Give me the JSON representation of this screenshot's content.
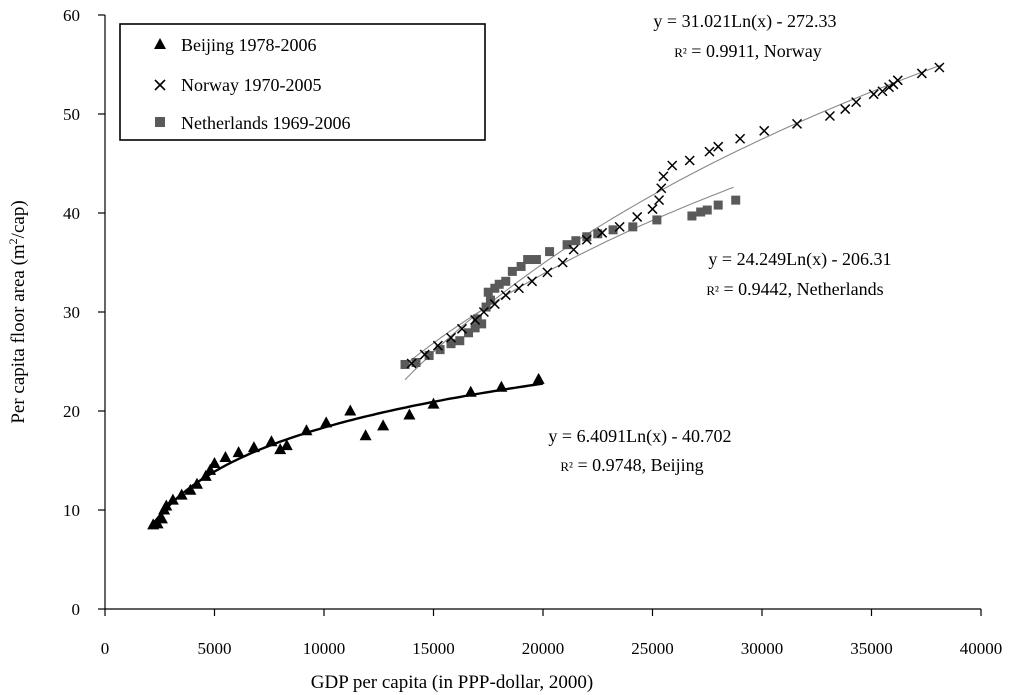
{
  "chart_data": {
    "type": "scatter",
    "title": "",
    "xlabel": "GDP per capita (in PPP-dollar, 2000)",
    "ylabel_main": "Per capita floor area (m",
    "ylabel_sup": "2",
    "ylabel_end": "/cap)",
    "xlim": [
      0,
      40000
    ],
    "ylim": [
      0,
      60
    ],
    "x_ticks": [
      0,
      5000,
      10000,
      15000,
      20000,
      25000,
      30000,
      35000,
      40000
    ],
    "y_ticks": [
      0,
      10,
      20,
      30,
      40,
      50,
      60
    ],
    "legend": {
      "position": "top-left",
      "entries": [
        "Beijing 1978-2006",
        "Norway 1970-2005",
        "Netherlands 1969-2006"
      ]
    },
    "series": [
      {
        "name": "Beijing 1978-2006",
        "marker": "triangle",
        "color": "#000000",
        "fit": {
          "a": 6.4091,
          "b": -40.702,
          "x_range": [
            2200,
            20000
          ]
        },
        "equation": "y = 6.4091Ln(x) - 40.702",
        "r2_label": "R²",
        "r2_text": " = 0.9748, Beijing",
        "points": [
          [
            2200,
            8.5
          ],
          [
            2400,
            8.6
          ],
          [
            2600,
            9.1
          ],
          [
            2700,
            10.0
          ],
          [
            2800,
            10.4
          ],
          [
            3100,
            11.0
          ],
          [
            3500,
            11.5
          ],
          [
            3900,
            12.0
          ],
          [
            4200,
            12.6
          ],
          [
            4600,
            13.4
          ],
          [
            4800,
            14.0
          ],
          [
            5000,
            14.7
          ],
          [
            5500,
            15.3
          ],
          [
            6100,
            15.8
          ],
          [
            6800,
            16.3
          ],
          [
            7600,
            16.9
          ],
          [
            8000,
            16.1
          ],
          [
            8300,
            16.5
          ],
          [
            9200,
            18.0
          ],
          [
            10100,
            18.8
          ],
          [
            11200,
            20.0
          ],
          [
            11900,
            17.5
          ],
          [
            12700,
            18.5
          ],
          [
            13900,
            19.6
          ],
          [
            15000,
            20.7
          ],
          [
            16700,
            21.9
          ],
          [
            18100,
            22.4
          ],
          [
            19800,
            23.2
          ]
        ]
      },
      {
        "name": "Norway 1970-2005",
        "marker": "cross",
        "color": "#000000",
        "fit": {
          "a": 31.021,
          "b": -272.33,
          "x_range": [
            13700,
            38200
          ]
        },
        "equation": "y = 31.021Ln(x) - 272.33",
        "r2_label": "R²",
        "r2_text": " = 0.9911, Norway",
        "points": [
          [
            14000,
            24.8
          ],
          [
            14600,
            25.7
          ],
          [
            15200,
            26.6
          ],
          [
            15800,
            27.4
          ],
          [
            16300,
            28.3
          ],
          [
            16900,
            29.2
          ],
          [
            17300,
            30.0
          ],
          [
            17800,
            30.8
          ],
          [
            18300,
            31.7
          ],
          [
            18900,
            32.4
          ],
          [
            19500,
            33.1
          ],
          [
            20200,
            34.0
          ],
          [
            20900,
            35.0
          ],
          [
            21400,
            36.3
          ],
          [
            22000,
            37.3
          ],
          [
            22700,
            38.0
          ],
          [
            23500,
            38.6
          ],
          [
            24300,
            39.6
          ],
          [
            25000,
            40.4
          ],
          [
            25300,
            41.3
          ],
          [
            25400,
            42.5
          ],
          [
            25500,
            43.7
          ],
          [
            25900,
            44.8
          ],
          [
            26700,
            45.3
          ],
          [
            27600,
            46.2
          ],
          [
            28000,
            46.7
          ],
          [
            29000,
            47.5
          ],
          [
            30100,
            48.3
          ],
          [
            31600,
            49.0
          ],
          [
            33100,
            49.8
          ],
          [
            33800,
            50.5
          ],
          [
            34300,
            51.2
          ],
          [
            35100,
            52.0
          ],
          [
            35500,
            52.3
          ],
          [
            35800,
            52.7
          ],
          [
            36000,
            53.0
          ],
          [
            36200,
            53.4
          ],
          [
            37300,
            54.1
          ],
          [
            38100,
            54.7
          ]
        ]
      },
      {
        "name": "Netherlands 1969-2006",
        "marker": "square",
        "color": "#5a5a5a",
        "fit": {
          "a": 24.249,
          "b": -206.31,
          "x_range": [
            13900,
            28700
          ]
        },
        "equation": "y = 24.249Ln(x) - 206.31",
        "r2_label": "R²",
        "r2_text": " = 0.9442, Netherlands",
        "points": [
          [
            13700,
            24.7
          ],
          [
            14200,
            24.9
          ],
          [
            14800,
            25.6
          ],
          [
            15300,
            26.2
          ],
          [
            15800,
            26.8
          ],
          [
            16200,
            27.1
          ],
          [
            16600,
            27.9
          ],
          [
            16900,
            28.4
          ],
          [
            17200,
            28.8
          ],
          [
            17000,
            29.3
          ],
          [
            17400,
            30.5
          ],
          [
            17600,
            31.2
          ],
          [
            17500,
            32.0
          ],
          [
            17800,
            32.4
          ],
          [
            18000,
            32.8
          ],
          [
            18300,
            33.1
          ],
          [
            18600,
            34.1
          ],
          [
            19000,
            34.6
          ],
          [
            19300,
            35.3
          ],
          [
            19700,
            35.3
          ],
          [
            20300,
            36.1
          ],
          [
            21100,
            36.8
          ],
          [
            21500,
            37.2
          ],
          [
            22000,
            37.6
          ],
          [
            22500,
            37.9
          ],
          [
            23200,
            38.3
          ],
          [
            24100,
            38.6
          ],
          [
            25200,
            39.3
          ],
          [
            26800,
            39.7
          ],
          [
            27200,
            40.1
          ],
          [
            27500,
            40.3
          ],
          [
            28000,
            40.8
          ],
          [
            28800,
            41.3
          ]
        ]
      }
    ]
  }
}
